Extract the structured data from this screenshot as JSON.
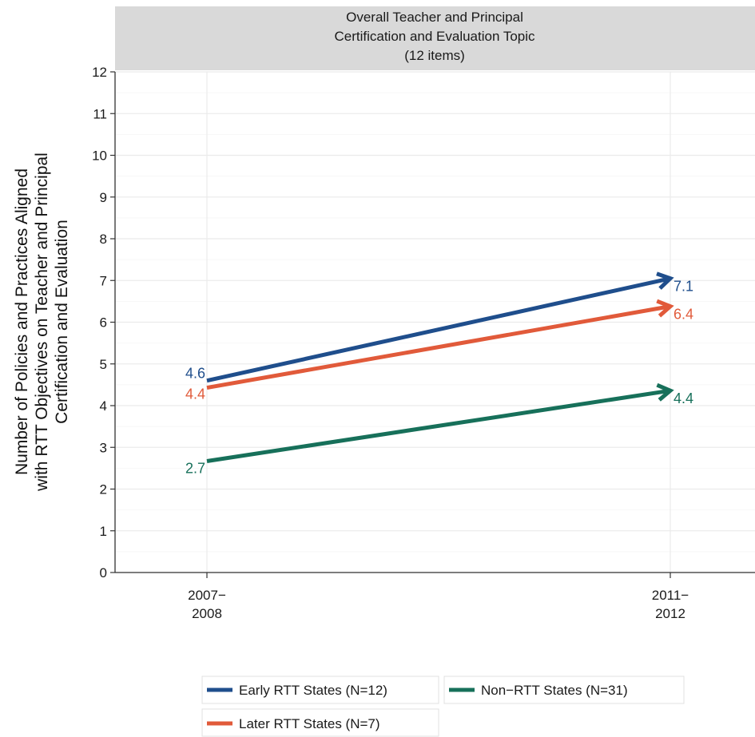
{
  "chart_data": {
    "type": "line",
    "facet_title": [
      "Overall Teacher and Principal",
      "Certification and Evaluation Topic",
      "(12 items)"
    ],
    "ylabel": [
      "Number of Policies and Practices Aligned",
      "with RTT Objectives on Teacher and Principal",
      "Certification and Evaluation"
    ],
    "xlabel": "",
    "categories": [
      [
        "2007−",
        "2008"
      ],
      [
        "2011−",
        "2012"
      ]
    ],
    "ylim": [
      0,
      12
    ],
    "yticks": [
      0,
      1,
      2,
      3,
      4,
      5,
      6,
      7,
      8,
      9,
      10,
      11,
      12
    ],
    "grid": true,
    "legend_position": "bottom",
    "series": [
      {
        "name": "Early RTT States (N=12)",
        "color": "#1f4e8c",
        "values": [
          4.6,
          7.05
        ],
        "labels": [
          "4.6",
          "7.1"
        ]
      },
      {
        "name": "Later RTT States (N=7)",
        "color": "#e15a3a",
        "values": [
          4.43,
          6.38
        ],
        "labels": [
          "4.4",
          "6.4"
        ]
      },
      {
        "name": "Non−RTT States (N=31)",
        "color": "#17705a",
        "values": [
          2.67,
          4.36
        ],
        "labels": [
          "2.7",
          "4.4"
        ]
      }
    ]
  }
}
